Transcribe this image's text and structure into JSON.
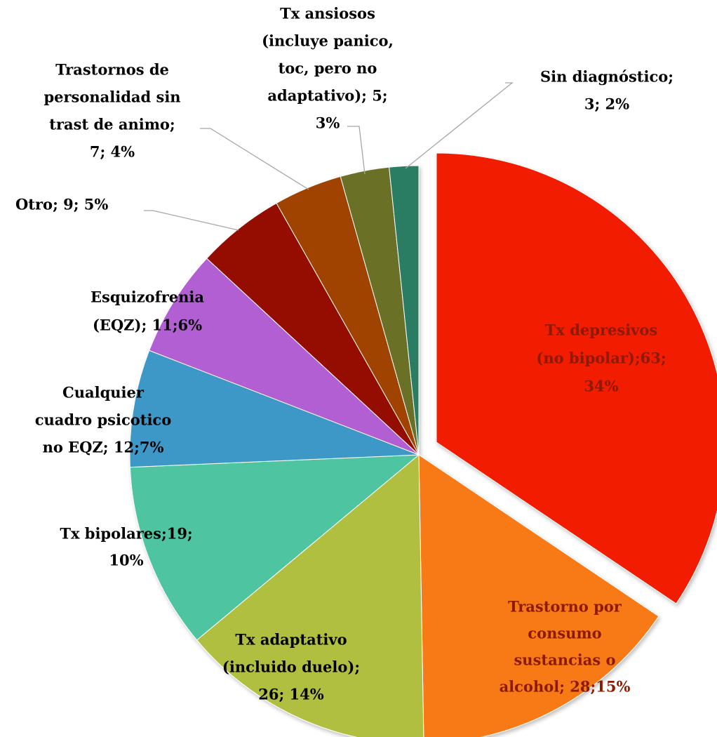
{
  "chart_data": {
    "type": "pie",
    "labels": [
      [
        "Tx depresivos",
        "(no bipolar);63;",
        "34%"
      ],
      [
        "Trastorno por",
        "consumo",
        "sustancias o",
        "alcohol; 28;15%"
      ],
      [
        "Tx adaptativo",
        "(incluido duelo);",
        "26; 14%"
      ],
      [
        "Tx bipolares;19;",
        "10%"
      ],
      [
        "Cualquier",
        "cuadro psicotico",
        "no EQZ; 12;7%"
      ],
      [
        "Esquizofrenia",
        "(EQZ); 11;6%"
      ],
      [
        "Otro; 9;  5%"
      ],
      [
        "Trastornos de",
        "personalidad sin",
        "trast de animo;",
        "7; 4%"
      ],
      [
        "Tx ansiosos",
        "(incluye panico,",
        "toc, pero no",
        "adaptativo); 5;",
        "3%"
      ],
      [
        "Sin diagnóstico;",
        "3; 2%"
      ]
    ],
    "values": [
      63,
      28,
      26,
      19,
      12,
      11,
      9,
      7,
      5,
      3
    ],
    "colors": [
      "#f21c03",
      "#f77a17",
      "#b1bf41",
      "#4fc4a0",
      "#3d97c7",
      "#b35fd4",
      "#940f00",
      "#a04300",
      "#6b7028",
      "#2a7c62"
    ]
  }
}
